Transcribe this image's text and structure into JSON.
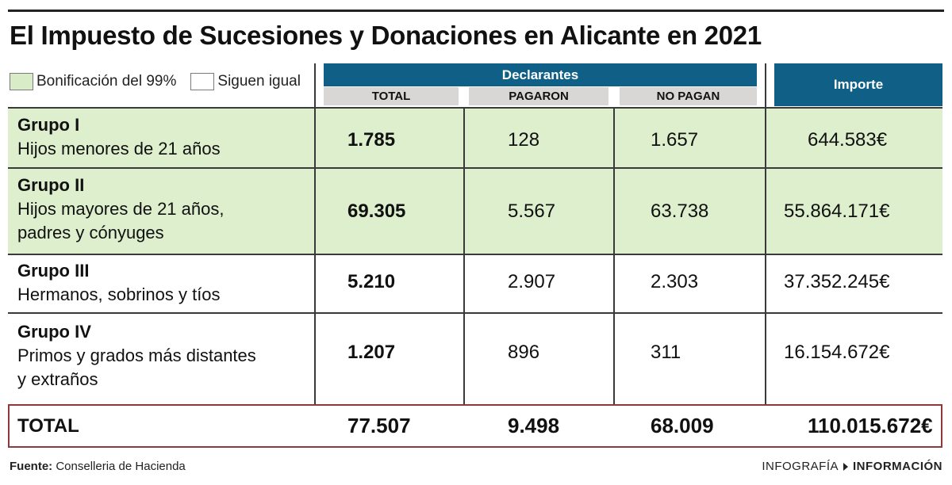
{
  "title": "El Impuesto de Sucesiones y Donaciones en Alicante en 2021",
  "legend": {
    "green_label": "Bonificación del 99%",
    "white_label": "Siguen igual",
    "green_color": "#d8ecc7",
    "white_color": "#ffffff"
  },
  "header": {
    "declarantes": "Declarantes",
    "importe": "Importe",
    "col_total": "TOTAL",
    "col_pagaron": "PAGARON",
    "col_no_pagan": "NO PAGAN"
  },
  "chart_data": {
    "type": "table",
    "title": "El Impuesto de Sucesiones y Donaciones en Alicante en 2021",
    "columns": [
      "TOTAL",
      "PAGARON",
      "NO PAGAN",
      "Importe"
    ],
    "rows": [
      {
        "name": "Grupo I",
        "desc1": "Hijos menores de 21 años",
        "desc2": "",
        "bonificacion": true,
        "total": "1.785",
        "pagaron": "128",
        "no_pagan": "1.657",
        "importe": "644.583€"
      },
      {
        "name": "Grupo II",
        "desc1": "Hijos mayores de 21 años,",
        "desc2": "padres y cónyuges",
        "bonificacion": true,
        "total": "69.305",
        "pagaron": "5.567",
        "no_pagan": "63.738",
        "importe": "55.864.171€"
      },
      {
        "name": "Grupo III",
        "desc1": "Hermanos, sobrinos y tíos",
        "desc2": "",
        "bonificacion": false,
        "total": "5.210",
        "pagaron": "2.907",
        "no_pagan": "2.303",
        "importe": "37.352.245€"
      },
      {
        "name": "Grupo IV",
        "desc1": "Primos y grados más distantes",
        "desc2": "y extraños",
        "bonificacion": false,
        "total": "1.207",
        "pagaron": "896",
        "no_pagan": "311",
        "importe": "16.154.672€"
      }
    ],
    "totals": {
      "label": "TOTAL",
      "total": "77.507",
      "pagaron": "9.498",
      "no_pagan": "68.009",
      "importe": "110.015.672€"
    }
  },
  "footer": {
    "source_label": "Fuente:",
    "source_text": "Conselleria de Hacienda",
    "credit_left": "INFOGRAFÍA",
    "credit_right": "INFORMACIÓN"
  },
  "colors": {
    "header_blue": "#0f5f86",
    "subheader_gray": "#d9d7d6",
    "row_green": "#ddefcd",
    "total_border": "#8f3a3a"
  }
}
